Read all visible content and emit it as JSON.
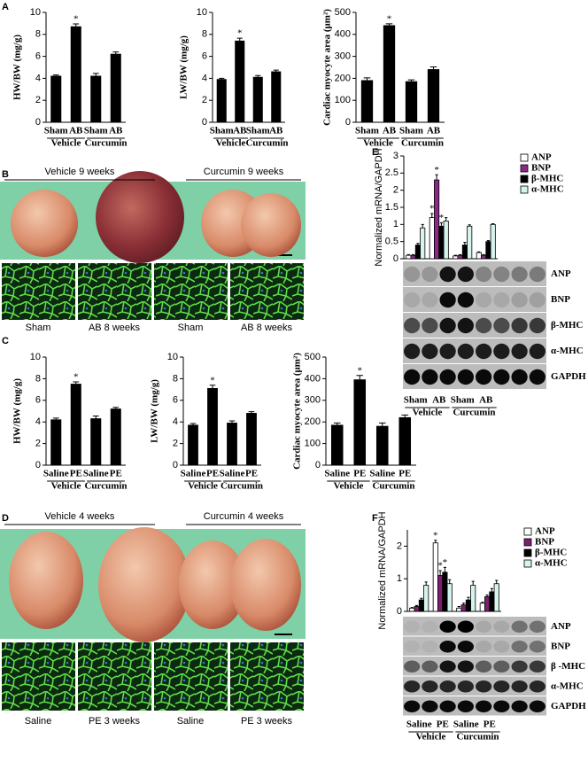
{
  "panel_letters": [
    "A",
    "B",
    "C",
    "D",
    "E",
    "F"
  ],
  "B": {
    "headers": [
      "Vehicle 9 weeks",
      "Curcumin 9 weeks"
    ],
    "captions": [
      "Sham",
      "AB 8 weeks",
      "Sham",
      "AB 8 weeks"
    ]
  },
  "D": {
    "headers": [
      "Vehicle 4 weeks",
      "Curcumin 4 weeks"
    ],
    "captions": [
      "Saline",
      "PE 3 weeks",
      "Saline",
      "PE 3 weeks"
    ]
  },
  "E_blot": [
    "ANP",
    "BNP",
    "β-MHC",
    "α-MHC",
    "GAPDH"
  ],
  "F_blot": [
    "ANP",
    "BNP",
    "β -MHC",
    "α-MHC",
    "GAPDH"
  ],
  "chart_data": [
    {
      "type": "bar",
      "ylabel": "HW/BW (mg/g)",
      "categories": [
        "Sham",
        "AB",
        "Sham",
        "AB"
      ],
      "values": [
        4.2,
        8.7,
        4.2,
        6.2
      ],
      "errors": [
        0.1,
        0.25,
        0.25,
        0.2
      ],
      "color": "#000000",
      "ylim": [
        0,
        10
      ],
      "yticks": [
        0,
        2,
        4,
        6,
        8,
        10
      ],
      "groups": [
        {
          "label": "Vehicle",
          "categories": [
            0,
            1
          ]
        },
        {
          "label": "Curcumin",
          "categories": [
            2,
            3
          ]
        }
      ],
      "annotations": [
        {
          "label": "*",
          "index": 1
        }
      ]
    },
    {
      "type": "bar",
      "ylabel": "LW/BW (mg/g)",
      "categories": [
        "Sham",
        "AB",
        "Sham",
        "AB"
      ],
      "values": [
        3.9,
        7.4,
        4.1,
        4.6
      ],
      "errors": [
        0.1,
        0.25,
        0.15,
        0.15
      ],
      "color": "#000000",
      "ylim": [
        0,
        10
      ],
      "yticks": [
        0,
        2,
        4,
        6,
        8,
        10
      ],
      "groups": [
        {
          "label": "Vehicle",
          "categories": [
            0,
            1
          ]
        },
        {
          "label": "Curcumin",
          "categories": [
            2,
            3
          ]
        }
      ],
      "annotations": [
        {
          "label": "*",
          "index": 1
        }
      ]
    },
    {
      "type": "bar",
      "ylabel": "Cardiac myocyte area (μm²)",
      "categories": [
        "Sham",
        "AB",
        "Sham",
        "AB"
      ],
      "values": [
        190,
        440,
        185,
        240
      ],
      "errors": [
        12,
        8,
        8,
        12
      ],
      "color": "#000000",
      "ylim": [
        0,
        500
      ],
      "yticks": [
        0,
        100,
        200,
        300,
        400,
        500
      ],
      "groups": [
        {
          "label": "Vehicle",
          "categories": [
            0,
            1
          ]
        },
        {
          "label": "Curcumin",
          "categories": [
            2,
            3
          ]
        }
      ],
      "annotations": [
        {
          "label": "*",
          "index": 1
        }
      ]
    },
    {
      "type": "bar",
      "ylabel": "HW/BW (mg/g)",
      "categories": [
        "Saline",
        "PE",
        "Saline",
        "PE"
      ],
      "values": [
        4.2,
        7.5,
        4.3,
        5.2
      ],
      "errors": [
        0.15,
        0.2,
        0.25,
        0.15
      ],
      "color": "#000000",
      "ylim": [
        0,
        10
      ],
      "yticks": [
        0,
        2,
        4,
        6,
        8,
        10
      ],
      "groups": [
        {
          "label": "Vehicle",
          "categories": [
            0,
            1
          ]
        },
        {
          "label": "Curcumin",
          "categories": [
            2,
            3
          ]
        }
      ],
      "annotations": [
        {
          "label": "*",
          "index": 1
        }
      ]
    },
    {
      "type": "bar",
      "ylabel": "LW/BW (mg/g)",
      "categories": [
        "Saline",
        "PE",
        "Saline",
        "PE"
      ],
      "values": [
        3.7,
        7.1,
        3.9,
        4.8
      ],
      "errors": [
        0.15,
        0.3,
        0.2,
        0.15
      ],
      "color": "#000000",
      "ylim": [
        0,
        10
      ],
      "yticks": [
        0,
        2,
        4,
        6,
        8,
        10
      ],
      "groups": [
        {
          "label": "Vehicle",
          "categories": [
            0,
            1
          ]
        },
        {
          "label": "Curcumin",
          "categories": [
            2,
            3
          ]
        }
      ],
      "annotations": [
        {
          "label": "*",
          "index": 1
        }
      ]
    },
    {
      "type": "bar",
      "ylabel": "Cardiac myocyte area (μm²)",
      "categories": [
        "Saline",
        "PE",
        "Saline",
        "PE"
      ],
      "values": [
        185,
        395,
        180,
        220
      ],
      "errors": [
        10,
        20,
        15,
        12
      ],
      "color": "#000000",
      "ylim": [
        0,
        500
      ],
      "yticks": [
        0,
        100,
        200,
        300,
        400,
        500
      ],
      "groups": [
        {
          "label": "Vehicle",
          "categories": [
            0,
            1
          ]
        },
        {
          "label": "Curcumin",
          "categories": [
            2,
            3
          ]
        }
      ],
      "annotations": [
        {
          "label": "*",
          "index": 1
        }
      ]
    },
    {
      "type": "grouped_bar",
      "ylabel": "Normalized mRNA/GAPDH",
      "categories": [
        "Sham",
        "AB",
        "Sham",
        "AB"
      ],
      "ylim": [
        0,
        3
      ],
      "yticks": [
        0,
        0.5,
        1,
        1.5,
        2,
        2.5,
        3
      ],
      "legend": "upper right",
      "series": [
        {
          "name": "ANP",
          "color": "#ffffff",
          "values": [
            0.1,
            1.2,
            0.08,
            0.18
          ],
          "errors": [
            0.02,
            0.12,
            0.02,
            0.02
          ]
        },
        {
          "name": "BNP",
          "color": "#8b2a86",
          "values": [
            0.1,
            2.3,
            0.1,
            0.1
          ],
          "errors": [
            0.02,
            0.15,
            0.02,
            0.02
          ]
        },
        {
          "name": "β-MHC",
          "color": "#000000",
          "values": [
            0.4,
            0.95,
            0.4,
            0.5
          ],
          "errors": [
            0.05,
            0.1,
            0.08,
            0.03
          ]
        },
        {
          "name": "α-MHC",
          "color": "#d6f3ee",
          "values": [
            0.9,
            1.1,
            0.95,
            1.0
          ],
          "errors": [
            0.1,
            0.1,
            0.04,
            0.02
          ]
        }
      ],
      "groups": [
        {
          "label": "Vehicle",
          "categories": [
            0,
            1
          ]
        },
        {
          "label": "Curcumin",
          "categories": [
            2,
            3
          ]
        }
      ],
      "annotations": [
        {
          "label": "*",
          "series": 0,
          "index": 1
        },
        {
          "label": "*",
          "series": 1,
          "index": 1
        },
        {
          "label": "*",
          "series": 2,
          "index": 1
        }
      ]
    },
    {
      "type": "grouped_bar",
      "ylabel": "Normalized mRNA/GAPDH",
      "categories": [
        "Saline",
        "PE",
        "Saline",
        "PE"
      ],
      "ylim": [
        0,
        2.5
      ],
      "yticks": [
        0,
        1,
        2
      ],
      "legend": "upper right",
      "series": [
        {
          "name": "ANP",
          "color": "#ffffff",
          "values": [
            0.1,
            2.1,
            0.1,
            0.25
          ],
          "errors": [
            0.02,
            0.08,
            0.05,
            0.03
          ]
        },
        {
          "name": "BNP",
          "color": "#7b1f6e",
          "values": [
            0.15,
            1.1,
            0.2,
            0.45
          ],
          "errors": [
            0.03,
            0.15,
            0.05,
            0.05
          ]
        },
        {
          "name": "β-MHC",
          "color": "#000000",
          "values": [
            0.35,
            1.2,
            0.35,
            0.6
          ],
          "errors": [
            0.05,
            0.15,
            0.08,
            0.1
          ]
        },
        {
          "name": "α-MHC",
          "color": "#d6f3ee",
          "values": [
            0.8,
            0.85,
            0.8,
            0.85
          ],
          "errors": [
            0.1,
            0.12,
            0.12,
            0.1
          ]
        }
      ],
      "groups": [
        {
          "label": "Vehicle",
          "categories": [
            0,
            1
          ]
        },
        {
          "label": "Curcumin",
          "categories": [
            2,
            3
          ]
        }
      ],
      "annotations": [
        {
          "label": "*",
          "series": 0,
          "index": 1
        },
        {
          "label": "*",
          "series": 1,
          "index": 1
        },
        {
          "label": "*",
          "series": 2,
          "index": 1
        }
      ]
    }
  ]
}
